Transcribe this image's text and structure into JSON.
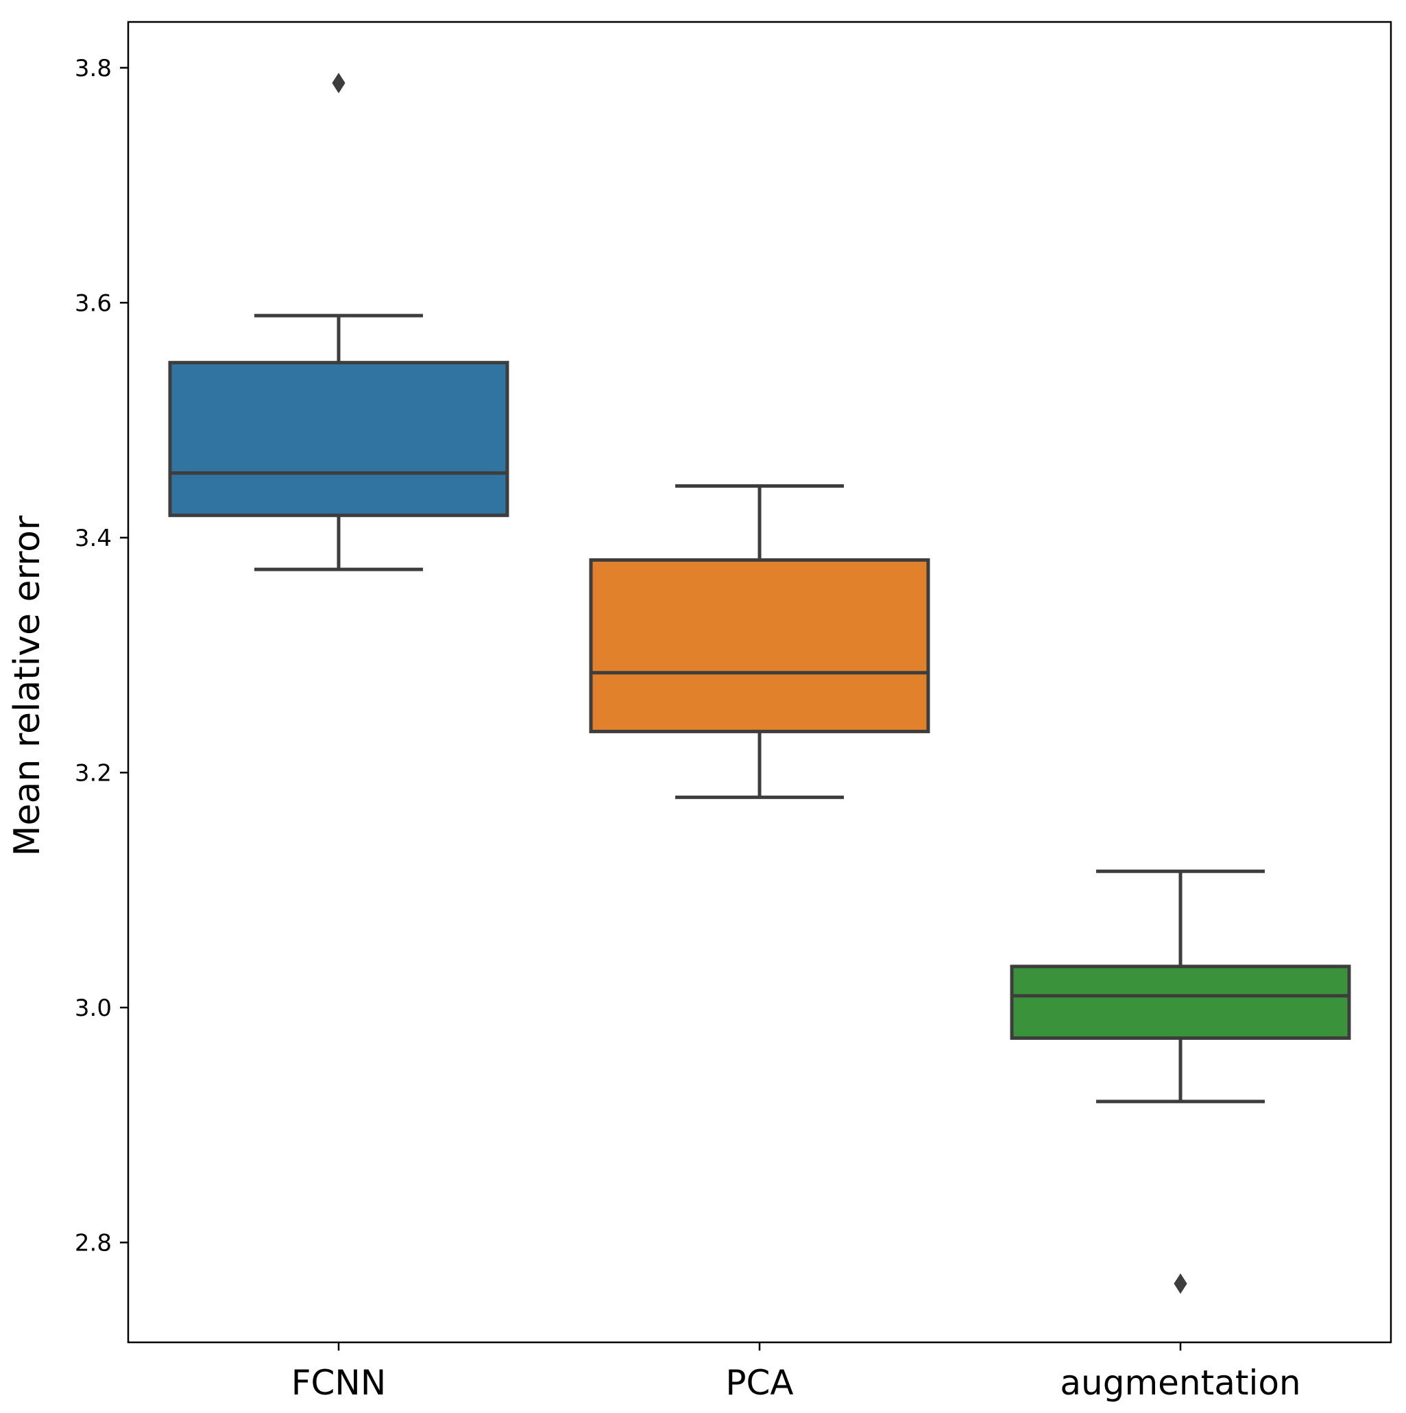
{
  "chart_data": {
    "type": "box",
    "title": "",
    "xlabel": "",
    "ylabel": "Mean relative error",
    "ylim": [
      2.715,
      3.839
    ],
    "yticks": [
      "2.8",
      "3.0",
      "3.2",
      "3.4",
      "3.6",
      "3.8"
    ],
    "grid": false,
    "categories": [
      "FCNN",
      "PCA",
      "augmentation"
    ],
    "series": [
      {
        "name": "FCNN",
        "color": "#3274a1",
        "whisker_low": 3.373,
        "q1": 3.419,
        "median": 3.455,
        "q3": 3.549,
        "whisker_high": 3.589,
        "outliers": [
          3.787
        ]
      },
      {
        "name": "PCA",
        "color": "#e1812c",
        "whisker_low": 3.179,
        "q1": 3.235,
        "median": 3.285,
        "q3": 3.381,
        "whisker_high": 3.444,
        "outliers": []
      },
      {
        "name": "augmentation",
        "color": "#3a923a",
        "whisker_low": 2.92,
        "q1": 2.974,
        "median": 3.01,
        "q3": 3.035,
        "whisker_high": 3.116,
        "outliers": [
          2.765
        ]
      }
    ]
  }
}
